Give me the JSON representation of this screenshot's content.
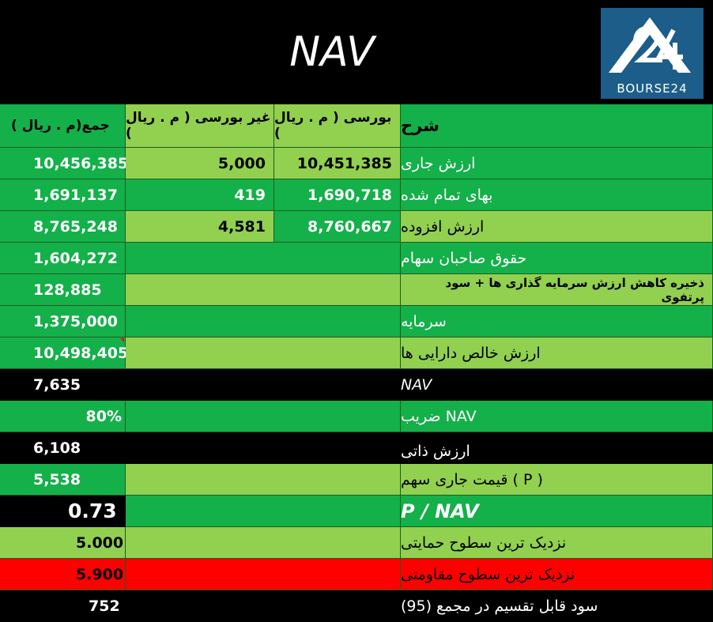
{
  "title": "NAV",
  "logo": {
    "text": "BOURSE24",
    "icon": "bourse24-logo-icon",
    "color": "#1c5d8a"
  },
  "headers": {
    "desc": "شرح",
    "bourse": "بورسی ( م . ریال )",
    "non_bourse": "غیر بورسی ( م . ریال )",
    "total": "( م . ریال)جمع"
  },
  "rows": [
    {
      "desc": "ارزش جاری",
      "bourse": "10,451,385",
      "non_bourse": "5,000",
      "total": "10,456,385"
    },
    {
      "desc": "بهای تمام شده",
      "bourse": "1,690,718",
      "non_bourse": "419",
      "total": "1,691,137"
    },
    {
      "desc": "ارزش افزوده",
      "bourse": "8,760,667",
      "non_bourse": "4,581",
      "total": "8,765,248"
    },
    {
      "desc": "حقوق صاحبان سهام",
      "total": "1,604,272"
    },
    {
      "desc": "ذخیره کاهش ارزش سرمایه گذاری ها + سود پرتفوی",
      "total": "128,885"
    },
    {
      "desc": "سرمایه",
      "total": "1,375,000"
    },
    {
      "desc": "ارزش خالص دارایی ها",
      "total": "10,498,405"
    },
    {
      "desc": "NAV",
      "total": "7,635"
    },
    {
      "desc": "NAV ضریب",
      "total": "80%"
    },
    {
      "desc": "ارزش ذاتی",
      "total": "6,108"
    },
    {
      "desc": "( P ) قیمت جاری سهم",
      "total": "5,538"
    },
    {
      "desc": "P / NAV",
      "total": "0.73"
    },
    {
      "desc": "نزدیک ترین سطوح حمایتی",
      "total": "5.000"
    },
    {
      "desc": "نزدیک ترین سطوح مقاومتی",
      "total": "5.900"
    },
    {
      "desc": "سود قابل تقسیم در مجمع (95)",
      "total": "752"
    }
  ],
  "colors": {
    "bright_green": "#14b04a",
    "light_green": "#92d050",
    "red": "#ff0000",
    "black": "#000000"
  }
}
